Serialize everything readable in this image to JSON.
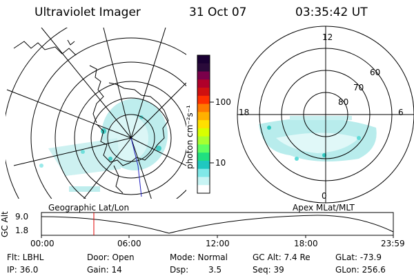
{
  "header": {
    "title": "Ultraviolet Imager",
    "date": "31 Oct 07",
    "time": "03:35:42 UT"
  },
  "colorbar": {
    "unit_label": "photon cm⁻²s⁻¹",
    "ticks": [
      "100",
      "10"
    ],
    "colors": [
      "#1a0033",
      "#2a0a3a",
      "#7a004a",
      "#b0002a",
      "#d01010",
      "#ff3000",
      "#ff7a00",
      "#ffb000",
      "#ffe000",
      "#d8ff00",
      "#a8ff30",
      "#60ff60",
      "#20e080",
      "#20c8c0",
      "#80e8e8",
      "#c8f4f4",
      "#ffffff"
    ]
  },
  "geo_panel": {
    "label": "Geographic Lat/Lon"
  },
  "polar_panel": {
    "label": "Apex MLat/MLT",
    "mlt_labels": {
      "top": "12",
      "bottom": "0",
      "left": "18",
      "right": "6"
    },
    "lat_labels": [
      "60",
      "70",
      "80"
    ]
  },
  "altitude_plot": {
    "ylabel": "GC Alt",
    "y_ticks": [
      "9.0",
      "1.8"
    ],
    "x_ticks": [
      "00:00",
      "06:00",
      "12:00",
      "18:00",
      "23:59"
    ],
    "current_time_color": "#e00000"
  },
  "info": {
    "filter": "Flt: LBHL",
    "door": "Door: Open",
    "mode": "Mode: Normal",
    "gc_alt": "GC Alt: 7.4 Re",
    "glat": "GLat: -73.9",
    "ip": "IP: 36.0",
    "gain": "Gain: 14",
    "dsp_label": "Dsp:",
    "dsp_value": "3.5",
    "seq": "Seq: 39",
    "glon": "GLon: 256.6"
  }
}
